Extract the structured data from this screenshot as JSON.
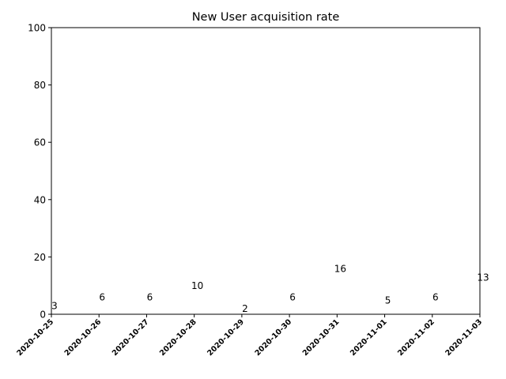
{
  "chart_data": {
    "type": "scatter",
    "title": "New User acquisition rate",
    "xlabel": "",
    "ylabel": "",
    "categories": [
      "2020-10-25",
      "2020-10-26",
      "2020-10-27",
      "2020-10-28",
      "2020-10-29",
      "2020-10-30",
      "2020-10-31",
      "2020-11-01",
      "2020-11-02",
      "2020-11-03"
    ],
    "values": [
      3,
      6,
      6,
      10,
      2,
      6,
      16,
      5,
      6,
      13
    ],
    "data_labels": [
      "3",
      "6",
      "6",
      "10",
      "2",
      "6",
      "16",
      "5",
      "6",
      "13"
    ],
    "ylim": [
      0,
      100
    ],
    "yticks": [
      0,
      20,
      40,
      60,
      80,
      100
    ],
    "grid": false,
    "legend": "none",
    "colors": {
      "axis": "#000000",
      "text": "#000000",
      "background": "#ffffff"
    }
  }
}
